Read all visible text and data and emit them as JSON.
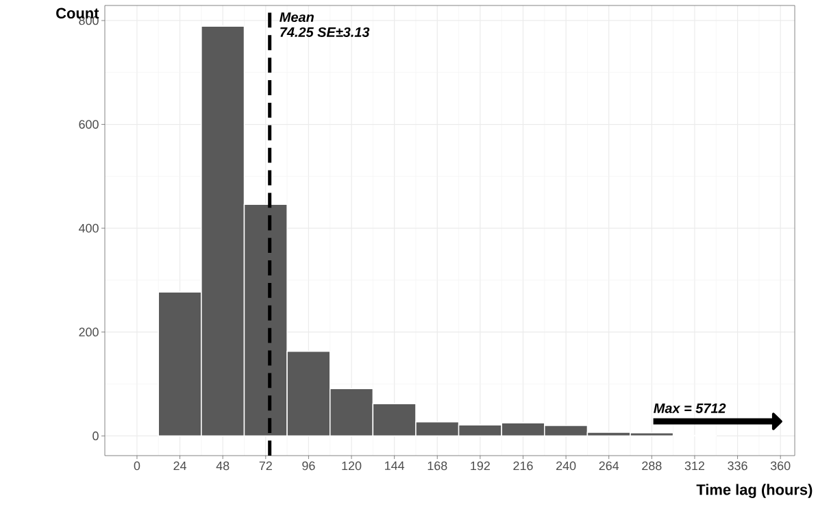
{
  "chart_data": {
    "type": "histogram",
    "xlabel": "Time lag (hours)",
    "ylabel": "Count",
    "bins": [
      12,
      36,
      60,
      84,
      108,
      132,
      156,
      180,
      204,
      228,
      252,
      276,
      300,
      324
    ],
    "values": [
      277,
      789,
      446,
      163,
      91,
      62,
      27,
      21,
      25,
      20,
      7,
      6,
      1
    ],
    "color": "#595959",
    "xlim": [
      -18,
      368
    ],
    "ylim": [
      -38,
      829
    ],
    "xticks": [
      0,
      24,
      48,
      72,
      96,
      120,
      144,
      168,
      192,
      216,
      240,
      264,
      288,
      312,
      336,
      360
    ],
    "yticks": [
      0,
      200,
      400,
      600,
      800
    ],
    "grid": true,
    "ref_lines": [
      {
        "axis": "x",
        "value": 74.25,
        "label": "Mean",
        "color": "#000000",
        "line_style": "dashed"
      }
    ],
    "annotations": [
      "74.25 SE±3.13",
      "Max = 5712"
    ]
  }
}
